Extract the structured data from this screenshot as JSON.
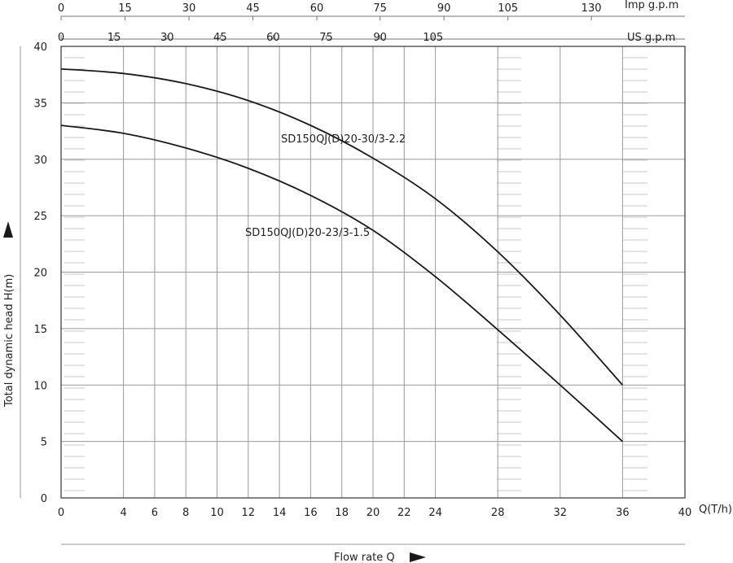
{
  "chart_data": {
    "type": "line",
    "xlabel": "Flow rate Q",
    "ylabel": "Total dynamic head H(m)",
    "x_unit_label": "Q(T/h)",
    "xlim": [
      0,
      40
    ],
    "ylim": [
      0,
      40
    ],
    "x_ticks": [
      0,
      4,
      6,
      8,
      10,
      12,
      14,
      16,
      18,
      20,
      22,
      24,
      28,
      32,
      36,
      40
    ],
    "y_ticks": [
      0,
      5,
      10,
      15,
      20,
      25,
      30,
      35,
      40
    ],
    "top_axes": [
      {
        "unit_label": "Imp g.p.m",
        "ticks": [
          {
            "label": "0",
            "q": 0
          },
          {
            "label": "15",
            "q": 4.1
          },
          {
            "label": "30",
            "q": 8.2
          },
          {
            "label": "45",
            "q": 12.3
          },
          {
            "label": "60",
            "q": 16.4
          },
          {
            "label": "75",
            "q": 20.45
          },
          {
            "label": "90",
            "q": 24.55
          },
          {
            "label": "105",
            "q": 28.65
          },
          {
            "label": "130",
            "q": 34.0
          }
        ]
      },
      {
        "unit_label": "US g.p.m",
        "ticks": [
          {
            "label": "0",
            "q": 0
          },
          {
            "label": "15",
            "q": 3.4
          },
          {
            "label": "30",
            "q": 6.8
          },
          {
            "label": "45",
            "q": 10.2
          },
          {
            "label": "60",
            "q": 13.6
          },
          {
            "label": "75",
            "q": 17.0
          },
          {
            "label": "90",
            "q": 20.45
          },
          {
            "label": "105",
            "q": 23.85
          }
        ]
      }
    ],
    "series": [
      {
        "name": "SD150QJ(D)20-30/3-2.2",
        "x": [
          0,
          4,
          8,
          12,
          16,
          20,
          24,
          28,
          32,
          36
        ],
        "y": [
          38,
          37.6,
          36.7,
          35.2,
          33.0,
          30.1,
          26.5,
          21.8,
          16.2,
          10
        ]
      },
      {
        "name": "SD150QJ(D)20-23/3-1.5",
        "x": [
          0,
          4,
          8,
          12,
          16,
          20,
          24,
          28,
          32,
          36
        ],
        "y": [
          33,
          32.3,
          31.0,
          29.2,
          26.8,
          23.7,
          19.6,
          14.9,
          10.0,
          5
        ]
      }
    ]
  }
}
